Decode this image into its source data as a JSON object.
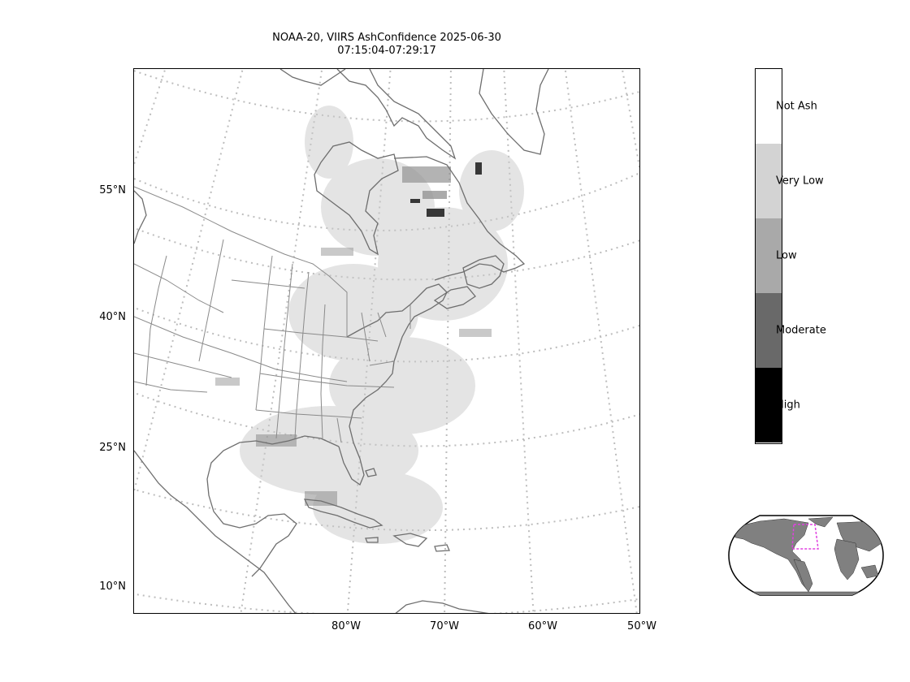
{
  "title_line1": "NOAA-20, VIIRS AshConfidence 2025-06-30",
  "title_line2": "07:15:04-07:29:17",
  "lat_labels": [
    {
      "text": "55°N",
      "lat": 55
    },
    {
      "text": "40°N",
      "lat": 40
    },
    {
      "text": "25°N",
      "lat": 25
    },
    {
      "text": "10°N",
      "lat": 10
    }
  ],
  "lon_labels": [
    {
      "text": "80°W",
      "lon": -80
    },
    {
      "text": "70°W",
      "lon": -70
    },
    {
      "text": "60°W",
      "lon": -60
    },
    {
      "text": "50°W",
      "lon": -50
    }
  ],
  "colorbar": {
    "categories": [
      {
        "label": "Not Ash",
        "color": "#ffffff"
      },
      {
        "label": "Very Low",
        "color": "#d3d3d3"
      },
      {
        "label": "Low",
        "color": "#a9a9a9"
      },
      {
        "label": "Moderate",
        "color": "#696969"
      },
      {
        "label": "High",
        "color": "#000000"
      }
    ]
  },
  "colors": {
    "coastline": "#6e6e6e",
    "state_borders": "#8a8a8a",
    "graticule": "#bdbdbd",
    "inset_land": "#808080",
    "inset_extent_box": "#e040e0"
  }
}
